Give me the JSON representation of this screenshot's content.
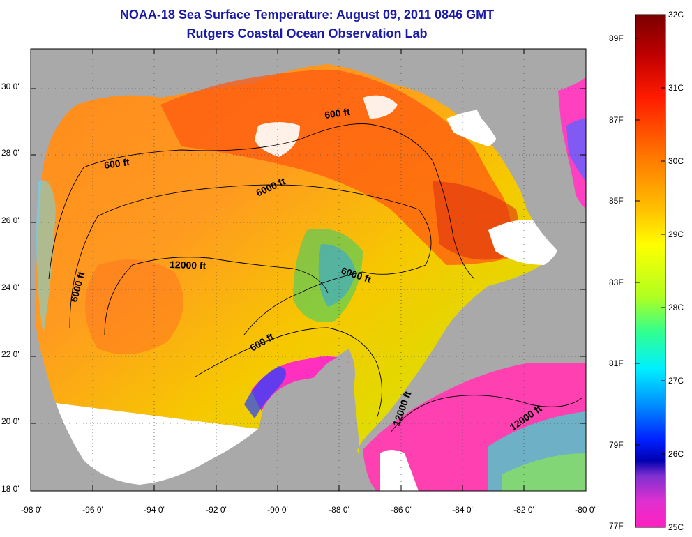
{
  "header": {
    "title": "NOAA-18 Sea Surface Temperature:  August 09, 2011 0846 GMT",
    "subtitle": "Rutgers Coastal Ocean Observation Lab"
  },
  "axes": {
    "lat_labels": [
      "30 0'",
      "28 0'",
      "26 0'",
      "24 0'",
      "22 0'",
      "20 0'",
      "18 0'"
    ],
    "lat_values": [
      30,
      28,
      26,
      24,
      22,
      20,
      18
    ],
    "lon_labels": [
      "-98 0'",
      "-96 0'",
      "-94 0'",
      "-92 0'",
      "-90 0'",
      "-88 0'",
      "-86 0'",
      "-84 0'",
      "-82 0'",
      "-80 0'"
    ],
    "lon_values": [
      -98,
      -96,
      -94,
      -92,
      -90,
      -88,
      -86,
      -84,
      -82,
      -80
    ],
    "lon_range": [
      -98,
      -80
    ],
    "lat_range": [
      18,
      31.2
    ]
  },
  "contours": {
    "labels": [
      "600 ft",
      "600 ft",
      "6000 ft",
      "12000 ft",
      "6000 ft",
      "6000 ft",
      "600 ft",
      "12000 ft",
      "12000 ft"
    ]
  },
  "colorbar": {
    "celsius": [
      "32C",
      "31C",
      "30C",
      "29C",
      "28C",
      "27C",
      "26C",
      "25C"
    ],
    "fahrenheit": [
      "89F",
      "87F",
      "85F",
      "83F",
      "81F",
      "79F",
      "77F"
    ],
    "celsius_values": [
      32,
      31,
      30,
      29,
      28,
      27,
      26,
      25
    ],
    "fahrenheit_values": [
      89,
      87,
      85,
      83,
      81,
      79,
      77
    ],
    "range_c": [
      25,
      32
    ]
  },
  "colors": {
    "title": "#1a1aa6",
    "land": "#a9a9a9",
    "cloud": "#ffffff"
  }
}
